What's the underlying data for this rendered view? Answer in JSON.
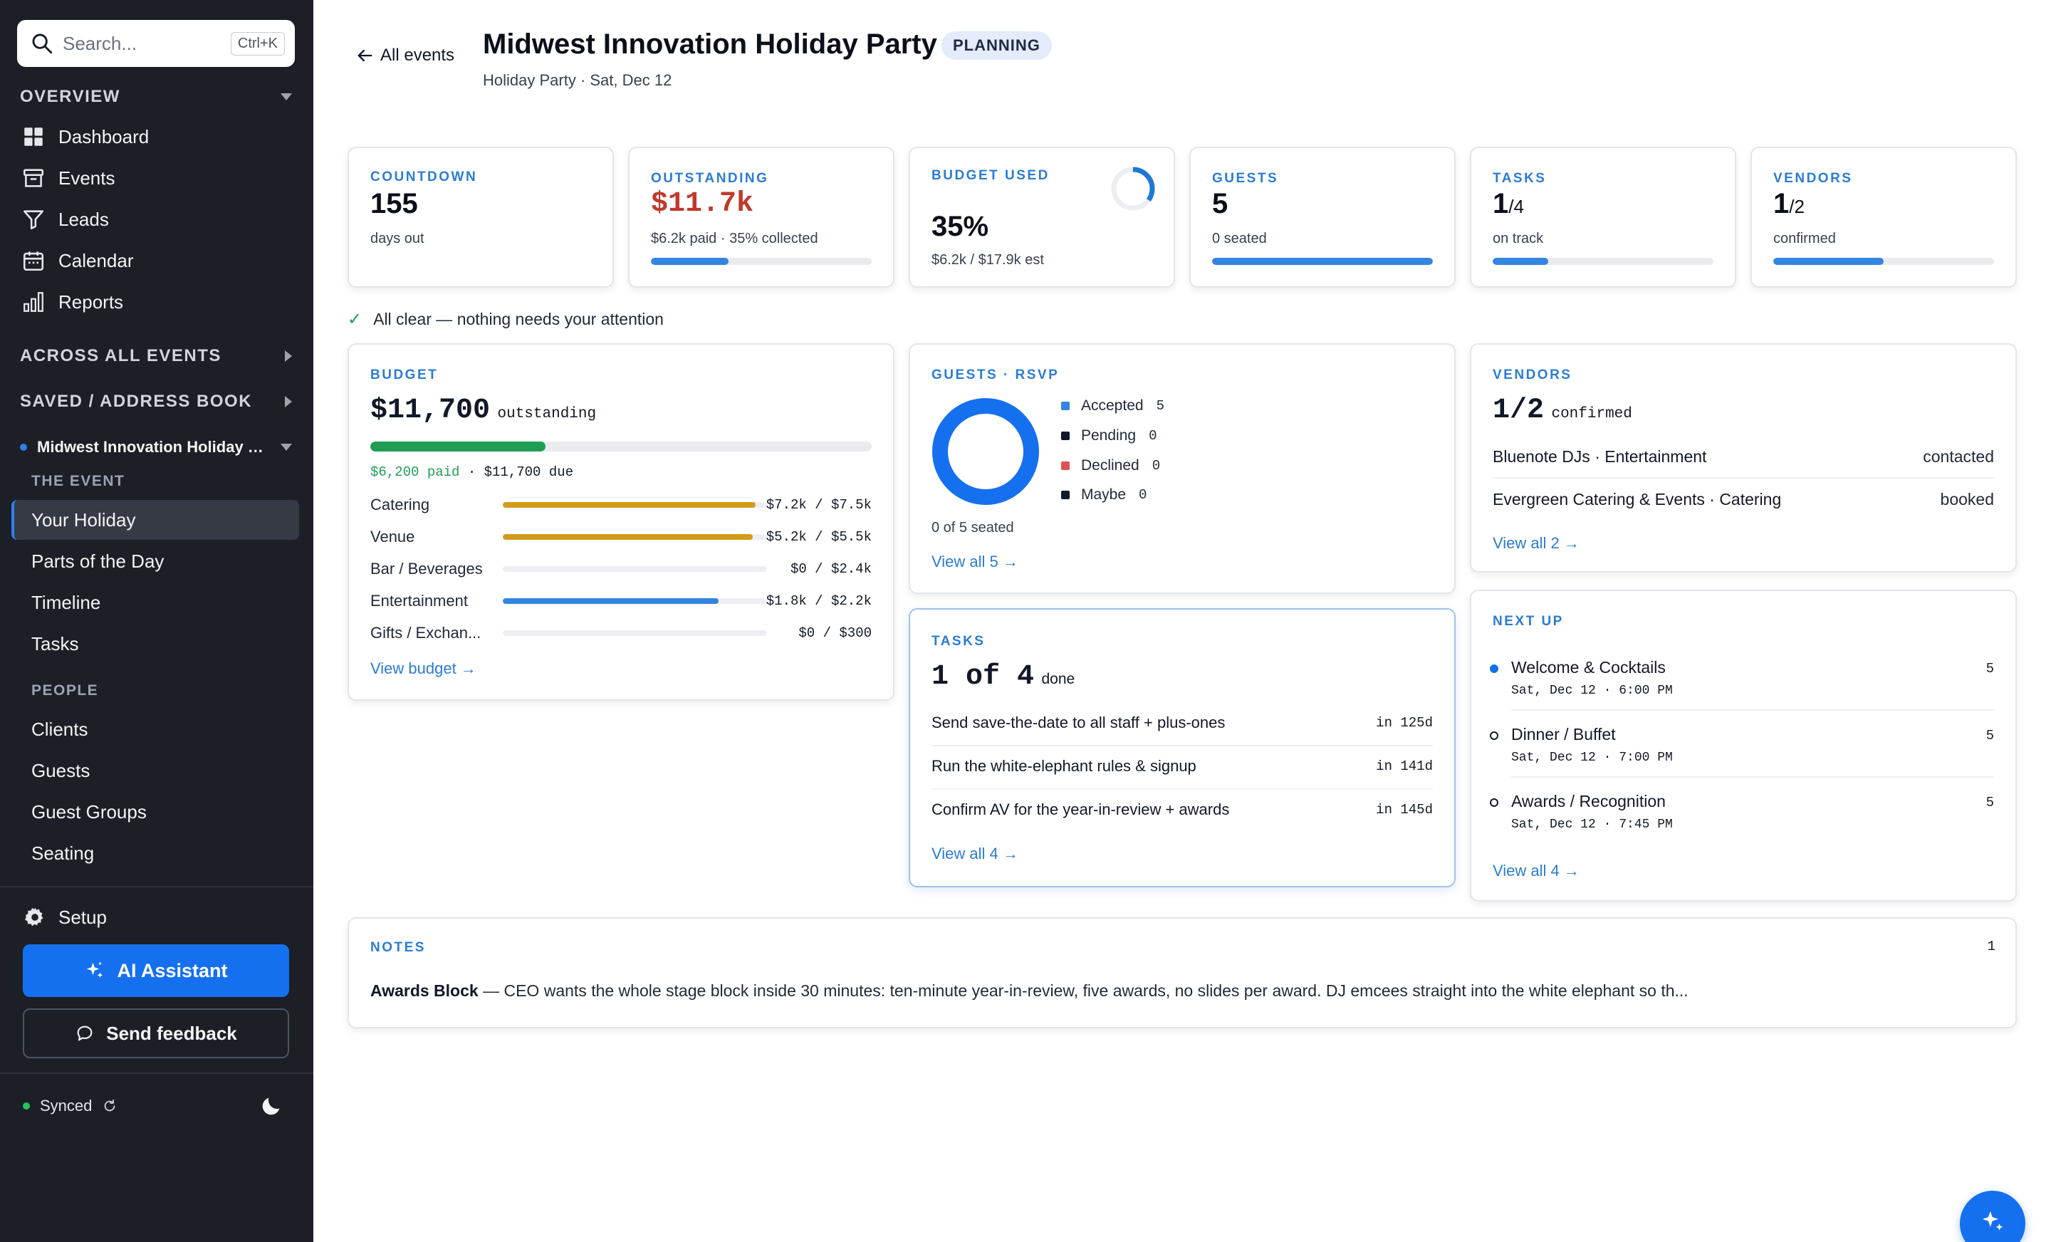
{
  "sidebar": {
    "search": {
      "placeholder": "Search...",
      "shortcut": "Ctrl+K"
    },
    "overview_label": "OVERVIEW",
    "nav": [
      {
        "label": "Dashboard",
        "icon": "grid-icon"
      },
      {
        "label": "Events",
        "icon": "archive-icon"
      },
      {
        "label": "Leads",
        "icon": "funnel-icon"
      },
      {
        "label": "Calendar",
        "icon": "calendar-icon"
      },
      {
        "label": "Reports",
        "icon": "bar-chart-icon"
      }
    ],
    "across_label": "ACROSS ALL EVENTS",
    "saved_label": "SAVED / ADDRESS BOOK",
    "event_name": "Midwest Innovation Holiday Party",
    "the_event_label": "THE EVENT",
    "event_items": [
      "Your Holiday",
      "Parts of the Day",
      "Timeline",
      "Tasks"
    ],
    "people_label": "PEOPLE",
    "people_items": [
      "Clients",
      "Guests",
      "Guest Groups",
      "Seating"
    ],
    "setup_label": "Setup",
    "ai_label": "AI Assistant",
    "feedback_label": "Send feedback",
    "synced_label": "Synced"
  },
  "header": {
    "back_label": "All events",
    "title": "Midwest Innovation Holiday Party",
    "badge": "PLANNING",
    "subtitle": "Holiday Party · Sat, Dec 12"
  },
  "stats": {
    "countdown": {
      "label": "COUNTDOWN",
      "value": "155",
      "sub": "days out"
    },
    "outstanding": {
      "label": "OUTSTANDING",
      "value": "$11.7k",
      "sub": "$6.2k paid · 35% collected",
      "progress": 0.35
    },
    "budget_used": {
      "label": "BUDGET USED",
      "value": "35%",
      "sub": "$6.2k / $17.9k est",
      "progress": 0.35
    },
    "guests": {
      "label": "GUESTS",
      "value": "5",
      "sub": "0 seated",
      "progress": 1.0
    },
    "tasks": {
      "label": "TASKS",
      "value": "1",
      "denom": "/4",
      "sub": "on track",
      "progress": 0.25
    },
    "vendors": {
      "label": "VENDORS",
      "value": "1",
      "denom": "/2",
      "sub": "confirmed",
      "progress": 0.5
    }
  },
  "status_message": "All clear — nothing needs your attention",
  "budget": {
    "label": "BUDGET",
    "amount": "$11,700",
    "amount_suffix": "outstanding",
    "paid": "$6,200 paid",
    "due": " · $11,700 due",
    "paid_fraction": 0.35,
    "rows": [
      {
        "name": "Catering",
        "amount": "$7.2k / $7.5k",
        "fraction": 0.96,
        "color": "#d39b1c"
      },
      {
        "name": "Venue",
        "amount": "$5.2k / $5.5k",
        "fraction": 0.95,
        "color": "#d39b1c"
      },
      {
        "name": "Bar / Beverages",
        "amount": "$0 / $2.4k",
        "fraction": 0.0,
        "color": "#3385e0"
      },
      {
        "name": "Entertainment",
        "amount": "$1.8k / $2.2k",
        "fraction": 0.82,
        "color": "#3385e0"
      },
      {
        "name": "Gifts / Exchan...",
        "amount": "$0 / $300",
        "fraction": 0.0,
        "color": "#3385e0"
      }
    ],
    "link": "View budget →"
  },
  "rsvp": {
    "label": "GUESTS · RSVP",
    "legend": [
      {
        "name": "Accepted",
        "count": "5",
        "color": "#3385e0"
      },
      {
        "name": "Pending",
        "count": "0",
        "color": "#111827"
      },
      {
        "name": "Declined",
        "count": "0",
        "color": "#e05252"
      },
      {
        "name": "Maybe",
        "count": "0",
        "color": "#111827"
      }
    ],
    "seated": "0 of 5 seated",
    "link": "View all 5 →"
  },
  "vendors": {
    "label": "VENDORS",
    "count": "1/2",
    "suffix": "confirmed",
    "items": [
      {
        "name": "Bluenote DJs · Entertainment",
        "status": "contacted"
      },
      {
        "name": "Evergreen Catering & Events · Catering",
        "status": "booked"
      }
    ],
    "link": "View all 2 →"
  },
  "tasks_card": {
    "label": "TASKS",
    "count": "1 of 4",
    "suffix": "done",
    "items": [
      {
        "name": "Send save-the-date to all staff + plus-ones",
        "due": "in 125d"
      },
      {
        "name": "Run the white-elephant rules & signup",
        "due": "in 141d"
      },
      {
        "name": "Confirm AV for the year-in-review + awards",
        "due": "in 145d"
      }
    ],
    "link": "View all 4 →"
  },
  "next_up": {
    "label": "NEXT UP",
    "items": [
      {
        "name": "Welcome & Cocktails",
        "date": "Sat, Dec 12 · 6:00 PM",
        "count": "5"
      },
      {
        "name": "Dinner / Buffet",
        "date": "Sat, Dec 12 · 7:00 PM",
        "count": "5"
      },
      {
        "name": "Awards / Recognition",
        "date": "Sat, Dec 12 · 7:45 PM",
        "count": "5"
      }
    ],
    "link": "View all 4 →"
  },
  "notes": {
    "label": "NOTES",
    "count": "1",
    "title": "Awards Block",
    "text": " — CEO wants the whole stage block inside 30 minutes: ten-minute year-in-review, five awards, no slides per award. DJ emcees straight into the white elephant so th..."
  },
  "colors": {
    "accent": "#1570ef",
    "sidebar_bg": "#1c1f26",
    "danger": "#c0392b",
    "success": "#16a34a"
  }
}
